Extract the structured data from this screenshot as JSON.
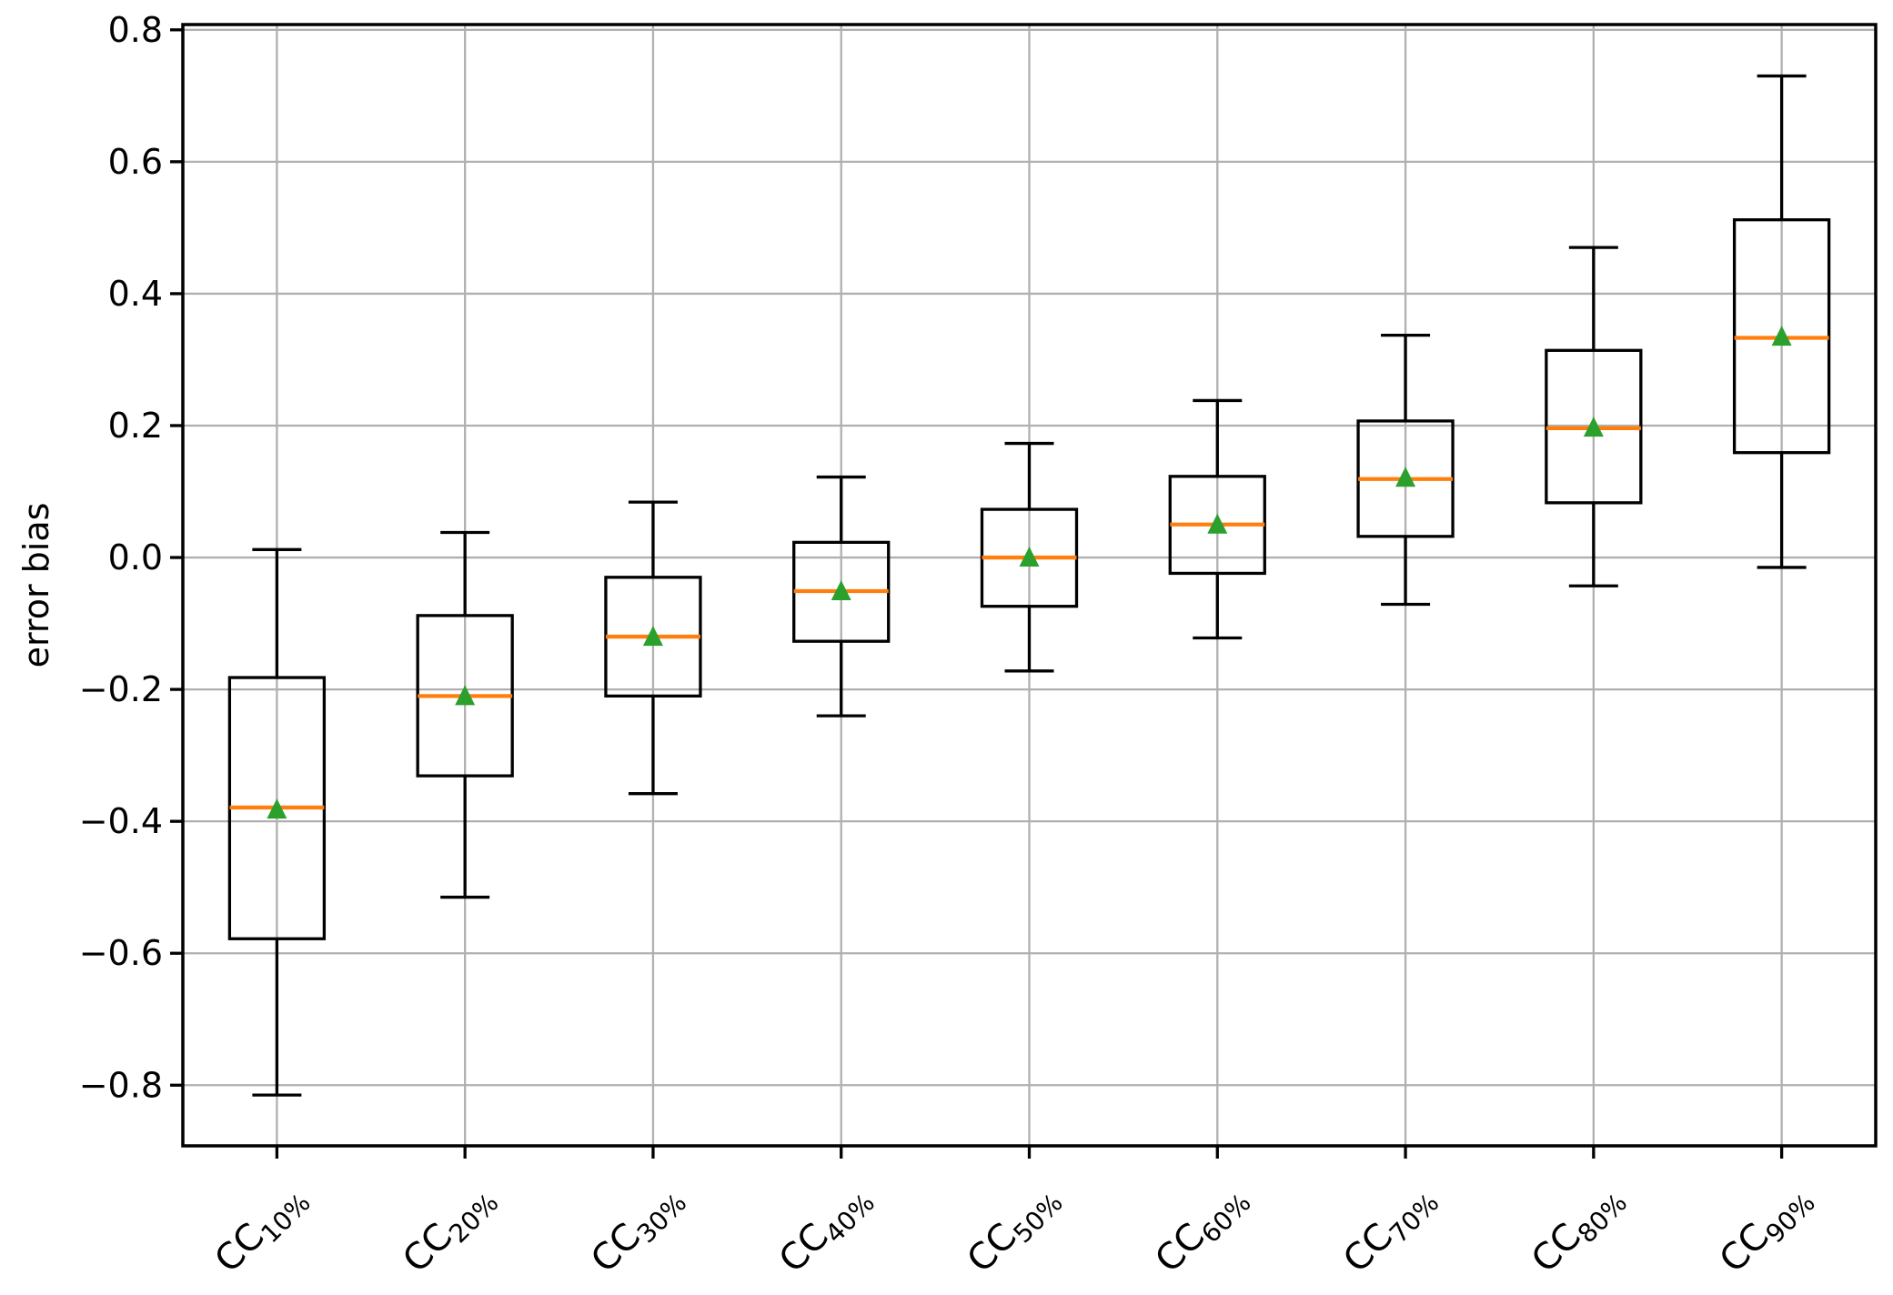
{
  "figure": {
    "kind": "boxplot figure",
    "background": "#ffffff"
  },
  "chart_data": {
    "type": "boxplot",
    "title": "",
    "xlabel": "",
    "ylabel": "error bias",
    "ylim": [
      -0.892,
      0.808
    ],
    "yticks": [
      0.8,
      0.6,
      0.4,
      0.2,
      0.0,
      -0.2,
      -0.4,
      -0.6,
      -0.8
    ],
    "ytick_labels": [
      "0.8",
      "0.6",
      "0.4",
      "0.2",
      "0.0",
      "−0.2",
      "−0.4",
      "−0.6",
      "−0.8"
    ],
    "grid": true,
    "legend": "none",
    "xtick_rotation_deg": 45,
    "mean_marker": "triangle-up",
    "colors": {
      "box": "#000000",
      "whisker": "#000000",
      "median": "#ff7f0e",
      "mean": "#2ca02c",
      "grid": "#b0b0b0",
      "spine": "#000000",
      "text": "#000000",
      "background": "#ffffff"
    },
    "categories": [
      {
        "label": "CC10%",
        "prefix": "CC",
        "subscript": "10%"
      },
      {
        "label": "CC20%",
        "prefix": "CC",
        "subscript": "20%"
      },
      {
        "label": "CC30%",
        "prefix": "CC",
        "subscript": "30%"
      },
      {
        "label": "CC40%",
        "prefix": "CC",
        "subscript": "40%"
      },
      {
        "label": "CC50%",
        "prefix": "CC",
        "subscript": "50%"
      },
      {
        "label": "CC60%",
        "prefix": "CC",
        "subscript": "60%"
      },
      {
        "label": "CC70%",
        "prefix": "CC",
        "subscript": "70%"
      },
      {
        "label": "CC80%",
        "prefix": "CC",
        "subscript": "80%"
      },
      {
        "label": "CC90%",
        "prefix": "CC",
        "subscript": "90%"
      }
    ],
    "boxes": [
      {
        "label": "CC10%",
        "whisker_low": -0.815,
        "q1": -0.578,
        "median": -0.379,
        "mean": -0.382,
        "q3": -0.182,
        "whisker_high": 0.012
      },
      {
        "label": "CC20%",
        "whisker_low": -0.515,
        "q1": -0.331,
        "median": -0.21,
        "mean": -0.21,
        "q3": -0.088,
        "whisker_high": 0.038
      },
      {
        "label": "CC30%",
        "whisker_low": -0.358,
        "q1": -0.21,
        "median": -0.12,
        "mean": -0.12,
        "q3": -0.03,
        "whisker_high": 0.084
      },
      {
        "label": "CC40%",
        "whisker_low": -0.24,
        "q1": -0.127,
        "median": -0.051,
        "mean": -0.051,
        "q3": 0.023,
        "whisker_high": 0.122
      },
      {
        "label": "CC50%",
        "whisker_low": -0.172,
        "q1": -0.074,
        "median": 0.0,
        "mean": 0.0,
        "q3": 0.073,
        "whisker_high": 0.173
      },
      {
        "label": "CC60%",
        "whisker_low": -0.122,
        "q1": -0.024,
        "median": 0.05,
        "mean": 0.05,
        "q3": 0.123,
        "whisker_high": 0.238
      },
      {
        "label": "CC70%",
        "whisker_low": -0.071,
        "q1": 0.032,
        "median": 0.119,
        "mean": 0.121,
        "q3": 0.207,
        "whisker_high": 0.337
      },
      {
        "label": "CC80%",
        "whisker_low": -0.043,
        "q1": 0.083,
        "median": 0.196,
        "mean": 0.197,
        "q3": 0.314,
        "whisker_high": 0.47
      },
      {
        "label": "CC90%",
        "whisker_low": -0.015,
        "q1": 0.159,
        "median": 0.333,
        "mean": 0.335,
        "q3": 0.512,
        "whisker_high": 0.73
      }
    ]
  }
}
